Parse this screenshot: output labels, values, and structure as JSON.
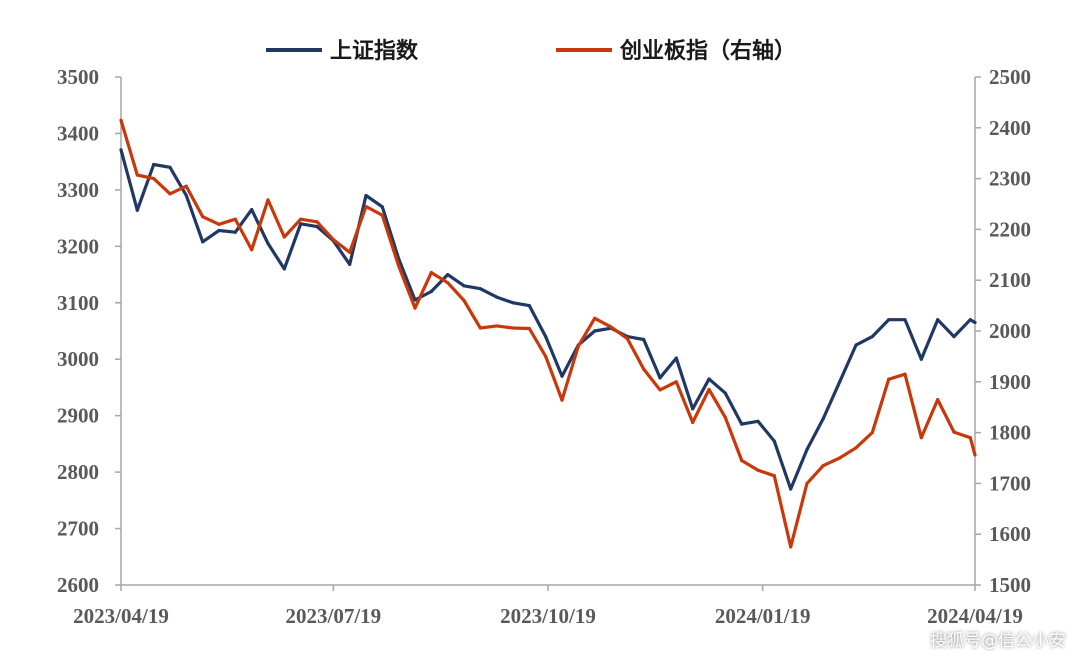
{
  "chart_data": {
    "type": "line",
    "title": "",
    "xlabel": "",
    "ylabel": "",
    "legend_position": "top",
    "grid": false,
    "x_ticks": [
      "2023/04/19",
      "2023/07/19",
      "2023/10/19",
      "2024/01/19",
      "2024/04/19"
    ],
    "x_range": [
      "2023-04-19",
      "2024-04-19"
    ],
    "y_left": {
      "range": [
        2600,
        3500
      ],
      "ticks": [
        2600,
        2700,
        2800,
        2900,
        3000,
        3100,
        3200,
        3300,
        3400,
        3500
      ]
    },
    "y_right": {
      "range": [
        1500,
        2500
      ],
      "ticks": [
        1500,
        1600,
        1700,
        1800,
        1900,
        2000,
        2100,
        2200,
        2300,
        2400,
        2500
      ]
    },
    "x": [
      "2023-04-19",
      "2023-04-26",
      "2023-05-03",
      "2023-05-10",
      "2023-05-17",
      "2023-05-24",
      "2023-05-31",
      "2023-06-07",
      "2023-06-14",
      "2023-06-21",
      "2023-06-28",
      "2023-07-05",
      "2023-07-12",
      "2023-07-19",
      "2023-07-26",
      "2023-08-02",
      "2023-08-09",
      "2023-08-16",
      "2023-08-23",
      "2023-08-30",
      "2023-09-06",
      "2023-09-13",
      "2023-09-20",
      "2023-09-27",
      "2023-10-04",
      "2023-10-11",
      "2023-10-18",
      "2023-10-25",
      "2023-11-01",
      "2023-11-08",
      "2023-11-15",
      "2023-11-22",
      "2023-11-29",
      "2023-12-06",
      "2023-12-13",
      "2023-12-20",
      "2023-12-27",
      "2024-01-03",
      "2024-01-10",
      "2024-01-17",
      "2024-01-24",
      "2024-01-31",
      "2024-02-07",
      "2024-02-14",
      "2024-02-21",
      "2024-02-28",
      "2024-03-06",
      "2024-03-13",
      "2024-03-20",
      "2024-03-27",
      "2024-04-03",
      "2024-04-10",
      "2024-04-17",
      "2024-04-19"
    ],
    "series": [
      {
        "name": "上证指数",
        "axis": "left",
        "color": "#1f3864",
        "values": [
          3371,
          3264,
          3345,
          3340,
          3290,
          3208,
          3228,
          3225,
          3265,
          3205,
          3160,
          3240,
          3235,
          3210,
          3168,
          3290,
          3270,
          3178,
          3105,
          3120,
          3150,
          3130,
          3125,
          3110,
          3100,
          3095,
          3040,
          2970,
          3025,
          3050,
          3055,
          3040,
          3035,
          2967,
          3002,
          2912,
          2965,
          2940,
          2885,
          2890,
          2855,
          2770,
          2840,
          2895,
          2960,
          3025,
          3040,
          3070,
          3070,
          3000,
          3070,
          3040,
          3070,
          3065
        ]
      },
      {
        "name": "创业板指（右轴）",
        "axis": "right",
        "color": "#c8380a",
        "values": [
          2415,
          2307,
          2300,
          2270,
          2285,
          2225,
          2210,
          2220,
          2160,
          2258,
          2185,
          2220,
          2215,
          2180,
          2155,
          2245,
          2228,
          2128,
          2045,
          2115,
          2095,
          2060,
          2006,
          2010,
          2006,
          2005,
          1950,
          1864,
          1970,
          2025,
          2008,
          1985,
          1925,
          1884,
          1900,
          1820,
          1885,
          1830,
          1745,
          1726,
          1715,
          1575,
          1700,
          1735,
          1750,
          1770,
          1800,
          1905,
          1915,
          1790,
          1865,
          1801,
          1790,
          1756
        ]
      }
    ]
  },
  "watermark": "搜狐号@信公小安"
}
